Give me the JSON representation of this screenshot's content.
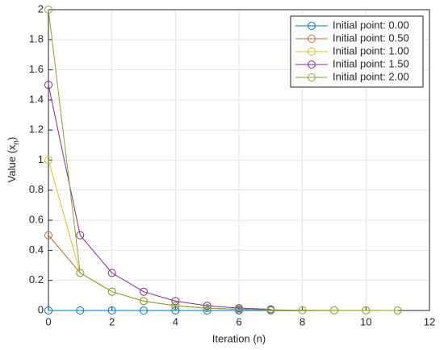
{
  "chart_data": {
    "type": "line",
    "xlabel": "Iteration (n)",
    "ylabel": [
      "Value (x",
      "n",
      ")"
    ],
    "xlim": [
      0,
      12
    ],
    "xticks": [
      0,
      2,
      4,
      6,
      8,
      10,
      12
    ],
    "ylim": [
      0,
      2
    ],
    "yticks": [
      0,
      0.2,
      0.4,
      0.6,
      0.8,
      1,
      1.2,
      1.4,
      1.6,
      1.8,
      2
    ],
    "grid": true,
    "legend": "northeast",
    "series": [
      {
        "name": "Initial point: 0.00",
        "color": "#0072bd",
        "x": [
          0,
          1,
          2,
          3,
          4,
          5,
          6,
          7
        ],
        "values": [
          0,
          0,
          0,
          0,
          0,
          0,
          0,
          0
        ]
      },
      {
        "name": "Initial point: 0.50",
        "color": "#b0714a",
        "x": [
          0,
          1,
          2,
          3,
          4,
          5,
          6,
          7
        ],
        "values": [
          0.5,
          0.25,
          0.125,
          0.0625,
          0.03125,
          0.0156,
          0.0078,
          0.0039
        ]
      },
      {
        "name": "Initial point: 1.00",
        "color": "#d4c136",
        "x": [
          0,
          1,
          2,
          3,
          4,
          5,
          6,
          7,
          8,
          9,
          10,
          11
        ],
        "values": [
          1,
          0.25,
          0.125,
          0.0625,
          0.03125,
          0.0156,
          0.0078,
          0.0039,
          0.002,
          0.001,
          0.0005,
          0.0002
        ]
      },
      {
        "name": "Initial point: 1.50",
        "color": "#7e2f8e",
        "x": [
          0,
          1,
          2,
          3,
          4,
          5,
          6,
          7
        ],
        "values": [
          1.5,
          0.5,
          0.25,
          0.125,
          0.0625,
          0.03125,
          0.0156,
          0.0078
        ]
      },
      {
        "name": "Initial point: 2.00",
        "color": "#8aa33a",
        "x": [
          0,
          1,
          2,
          3,
          4,
          5,
          6,
          7,
          8,
          9,
          10,
          11
        ],
        "values": [
          2,
          0.25,
          0.125,
          0.0625,
          0.03125,
          0.0156,
          0.0078,
          0.0039,
          0.002,
          0.001,
          0.0005,
          0.0002
        ]
      }
    ]
  }
}
